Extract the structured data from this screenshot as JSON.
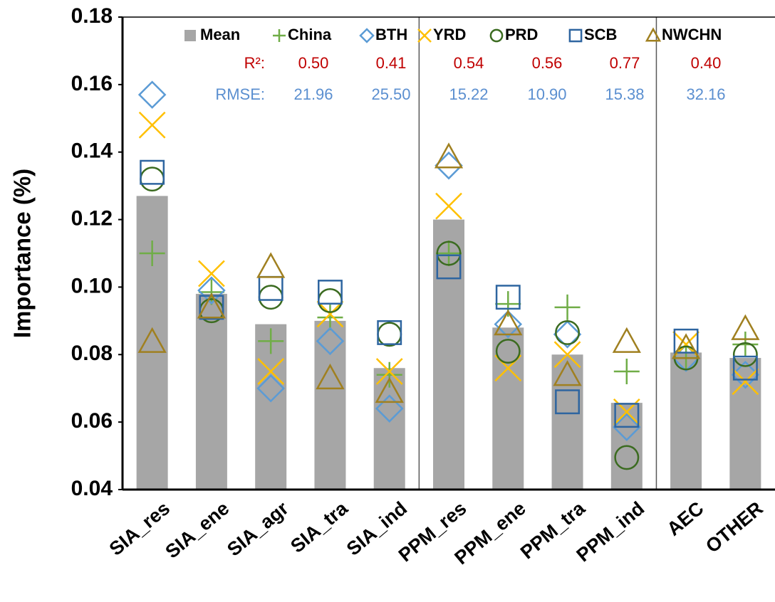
{
  "chart_data": {
    "type": "bar",
    "y_label": "Importance (%)",
    "categories": [
      "SIA_res",
      "SIA_ene",
      "SIA_agr",
      "SIA_tra",
      "SIA_ind",
      "PPM_res",
      "PPM_ene",
      "PPM_tra",
      "PPM_ind",
      "AEC",
      "OTHER"
    ],
    "ylim": [
      0.04,
      0.18
    ],
    "yticks": [
      0.04,
      0.06,
      0.08,
      {
        "value": 0.1,
        "label": "0.10"
      },
      0.12,
      0.14,
      0.16,
      0.18
    ],
    "bar": {
      "name": "Mean",
      "color": "#a6a6a6",
      "values": [
        0.127,
        0.098,
        0.089,
        0.09,
        0.076,
        0.12,
        0.088,
        0.08,
        0.0657,
        0.0806,
        0.079
      ]
    },
    "stats_labels": {
      "r2": "R²:",
      "rmse": "RMSE:",
      "r2_color": "#c00000",
      "rmse_color": "#5b8fd0"
    },
    "series": [
      {
        "name": "China",
        "marker": "plus",
        "color": "#70ad47",
        "r2": "0.50",
        "rmse": "21.96",
        "values": [
          0.11,
          0.0985,
          0.084,
          0.091,
          0.074,
          0.11,
          0.095,
          0.094,
          0.075,
          0.079,
          0.083
        ]
      },
      {
        "name": "BTH",
        "marker": "diamond",
        "color": "#5b9bd5",
        "r2": "0.41",
        "rmse": "25.50",
        "values": [
          0.157,
          0.099,
          0.07,
          0.084,
          0.064,
          0.136,
          0.089,
          0.086,
          0.0585,
          0.079,
          0.074
        ]
      },
      {
        "name": "YRD",
        "marker": "cross",
        "color": "#ffc000",
        "r2": "0.54",
        "rmse": "15.22",
        "values": [
          0.148,
          0.104,
          0.075,
          0.092,
          0.075,
          0.124,
          0.076,
          0.08,
          0.063,
          0.083,
          0.072
        ]
      },
      {
        "name": "PRD",
        "marker": "circle",
        "color": "#3b6b20",
        "r2": "0.56",
        "rmse": "10.90",
        "values": [
          0.132,
          0.093,
          0.097,
          0.096,
          0.086,
          0.11,
          0.081,
          0.0865,
          0.0495,
          0.079,
          0.08
        ]
      },
      {
        "name": "SCB",
        "marker": "square",
        "color": "#2e65a0",
        "r2": "0.77",
        "rmse": "15.38",
        "values": [
          0.134,
          0.094,
          0.0996,
          0.0985,
          0.0865,
          0.106,
          0.097,
          0.066,
          0.062,
          0.084,
          0.076
        ]
      },
      {
        "name": "NWCHN",
        "marker": "triangle",
        "color": "#a08020",
        "r2": "0.40",
        "rmse": "32.16",
        "values": [
          0.0838,
          0.094,
          0.106,
          0.073,
          0.069,
          0.1385,
          0.089,
          0.074,
          0.0838,
          0.082,
          0.0876
        ]
      }
    ]
  }
}
